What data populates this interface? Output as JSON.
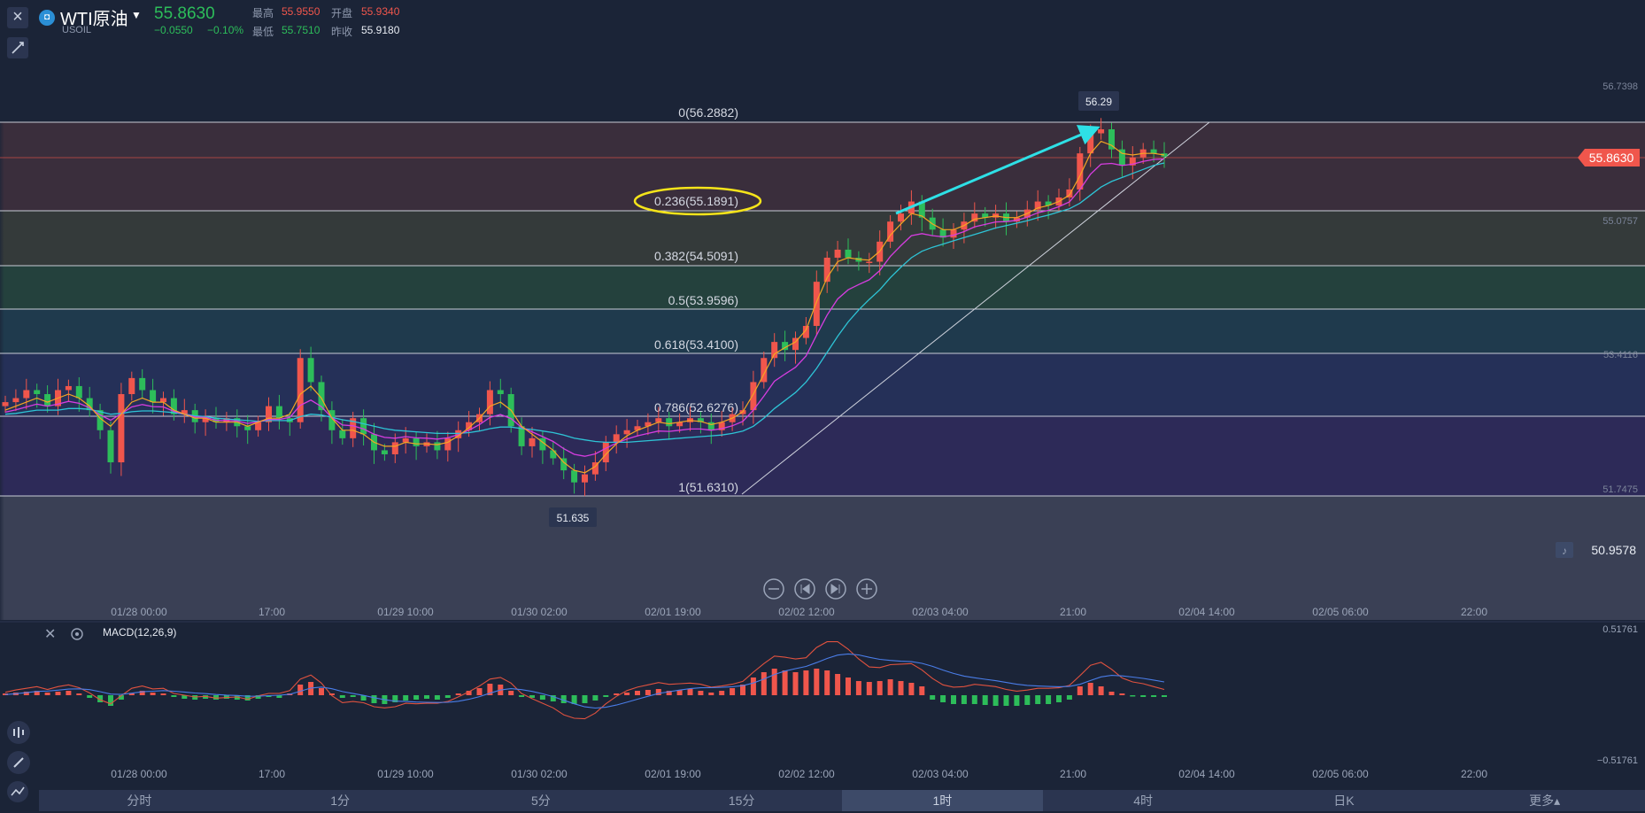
{
  "header": {
    "symbol_name": "WTI原油",
    "symbol_code": "USOIL",
    "price": "55.8630",
    "change": "−0.0550",
    "change_pct": "−0.10%",
    "stats": {
      "high_label": "最高",
      "high_value": "55.9550",
      "open_label": "开盘",
      "open_value": "55.9340",
      "low_label": "最低",
      "low_value": "55.7510",
      "prev_label": "昨收",
      "prev_value": "55.9180"
    }
  },
  "price_axis": {
    "ticks": [
      "56.7398",
      "55.0757",
      "53.4116",
      "51.7475"
    ],
    "current_badge": "55.8630",
    "alert_price": "50.9578"
  },
  "fib_labels": [
    "0(56.2882)",
    "0.236(55.1891)",
    "0.382(54.5091)",
    "0.5(53.9596)",
    "0.618(53.4100)",
    "0.786(52.6276)",
    "1(51.6310)"
  ],
  "callouts": {
    "high": "56.29",
    "low": "51.635"
  },
  "x_axis": {
    "labels": [
      "01/28 00:00",
      "17:00",
      "01/29 10:00",
      "01/30 02:00",
      "02/01 19:00",
      "02/02 12:00",
      "02/03 04:00",
      "21:00",
      "02/04 14:00",
      "02/05 06:00",
      "22:00"
    ]
  },
  "macd": {
    "label": "MACD(12,26,9)",
    "top_value": "0.51761",
    "bottom_value": "−0.51761"
  },
  "intervals": [
    "分时",
    "1分",
    "5分",
    "15分",
    "1时",
    "4时",
    "日K",
    "更多▴"
  ],
  "active_interval": "1时",
  "colors": {
    "up": "#f0564c",
    "down": "#2dbd5a",
    "ma_fast": "#f5a623",
    "ma_mid": "#d63de0",
    "ma_slow": "#2ec4d6",
    "annotation": "#2ee0e6",
    "highlight": "#f5e41a"
  },
  "chart_data": {
    "type": "candlestick",
    "fib_levels": [
      {
        "ratio": 0,
        "price": 56.2882
      },
      {
        "ratio": 0.236,
        "price": 55.1891
      },
      {
        "ratio": 0.382,
        "price": 54.5091
      },
      {
        "ratio": 0.5,
        "price": 53.9596
      },
      {
        "ratio": 0.618,
        "price": 53.41
      },
      {
        "ratio": 0.786,
        "price": 52.6276
      },
      {
        "ratio": 1,
        "price": 51.631
      }
    ],
    "high": 56.29,
    "low": 51.635,
    "closes": [
      52.8,
      52.85,
      52.95,
      52.9,
      52.75,
      52.95,
      53.0,
      52.85,
      52.7,
      52.45,
      52.05,
      52.9,
      53.1,
      52.95,
      52.8,
      52.85,
      52.65,
      52.7,
      52.55,
      52.6,
      52.55,
      52.6,
      52.5,
      52.45,
      52.55,
      52.75,
      52.6,
      52.55,
      53.35,
      53.05,
      52.7,
      52.45,
      52.35,
      52.6,
      52.4,
      52.2,
      52.15,
      52.3,
      52.35,
      52.25,
      52.3,
      52.2,
      52.35,
      52.45,
      52.55,
      52.65,
      52.95,
      52.9,
      52.5,
      52.25,
      52.35,
      52.2,
      52.1,
      51.95,
      51.8,
      51.9,
      52.05,
      52.3,
      52.4,
      52.45,
      52.5,
      52.55,
      52.6,
      52.5,
      52.55,
      52.6,
      52.55,
      52.45,
      52.55,
      52.65,
      52.7,
      53.05,
      53.35,
      53.55,
      53.45,
      53.6,
      53.75,
      54.3,
      54.6,
      54.7,
      54.6,
      54.55,
      54.55,
      54.8,
      55.05,
      55.15,
      55.3,
      55.1,
      54.95,
      54.85,
      54.95,
      55.05,
      55.15,
      55.1,
      55.15,
      55.05,
      55.1,
      55.2,
      55.3,
      55.25,
      55.35,
      55.45,
      55.9,
      56.15,
      56.2,
      55.95,
      55.75,
      55.85,
      55.95,
      55.9,
      55.86
    ],
    "ma_fast": [
      52.7,
      52.75,
      52.8,
      52.85,
      52.8,
      52.85,
      52.9,
      52.85,
      52.75,
      52.6,
      52.5,
      52.65,
      52.8,
      52.85,
      52.8,
      52.8,
      52.7,
      52.65,
      52.6,
      52.6,
      52.55,
      52.55,
      52.55,
      52.5,
      52.55,
      52.6,
      52.6,
      52.65,
      52.9,
      53.0,
      52.85,
      52.6,
      52.45,
      52.45,
      52.4,
      52.3,
      52.25,
      52.25,
      52.3,
      52.28,
      52.28,
      52.27,
      52.3,
      52.38,
      52.48,
      52.6,
      52.75,
      52.8,
      52.7,
      52.5,
      52.4,
      52.3,
      52.2,
      52.05,
      51.95,
      51.92,
      52.0,
      52.15,
      52.28,
      52.38,
      52.45,
      52.5,
      52.55,
      52.53,
      52.55,
      52.57,
      52.56,
      52.52,
      52.55,
      52.6,
      52.68,
      52.9,
      53.15,
      53.4,
      53.48,
      53.55,
      53.7,
      54.05,
      54.35,
      54.55,
      54.6,
      54.58,
      54.57,
      54.68,
      54.88,
      55.02,
      55.15,
      55.12,
      55.02,
      54.95,
      54.95,
      55.0,
      55.08,
      55.1,
      55.12,
      55.1,
      55.1,
      55.15,
      55.22,
      55.25,
      55.3,
      55.38,
      55.62,
      55.9,
      56.05,
      56.0,
      55.9,
      55.88,
      55.9,
      55.9,
      55.88
    ],
    "ma_slow": [
      52.65,
      52.66,
      52.68,
      52.7,
      52.7,
      52.7,
      52.72,
      52.72,
      52.71,
      52.68,
      52.65,
      52.66,
      52.68,
      52.69,
      52.69,
      52.68,
      52.67,
      52.65,
      52.63,
      52.62,
      52.6,
      52.59,
      52.58,
      52.57,
      52.56,
      52.57,
      52.57,
      52.57,
      52.62,
      52.65,
      52.64,
      52.61,
      52.58,
      52.56,
      52.53,
      52.5,
      52.47,
      52.45,
      52.44,
      52.43,
      52.42,
      52.41,
      52.41,
      52.41,
      52.42,
      52.44,
      52.47,
      52.49,
      52.49,
      52.47,
      52.46,
      52.44,
      52.42,
      52.39,
      52.35,
      52.33,
      52.31,
      52.3,
      52.3,
      52.3,
      52.31,
      52.32,
      52.33,
      52.34,
      52.35,
      52.36,
      52.37,
      52.38,
      52.39,
      52.41,
      52.44,
      52.5,
      52.6,
      52.72,
      52.82,
      52.92,
      53.05,
      53.22,
      53.42,
      53.62,
      53.8,
      53.95,
      54.08,
      54.2,
      54.35,
      54.48,
      54.6,
      54.68,
      54.73,
      54.77,
      54.81,
      54.85,
      54.89,
      54.93,
      54.97,
      55.0,
      55.03,
      55.06,
      55.1,
      55.13,
      55.17,
      55.21,
      55.28,
      55.38,
      55.48,
      55.55,
      55.6,
      55.65,
      55.7,
      55.75,
      55.78
    ],
    "macd_histogram": [
      0.02,
      0.03,
      0.04,
      0.05,
      0.03,
      0.04,
      0.05,
      0.02,
      -0.03,
      -0.08,
      -0.12,
      -0.05,
      0.02,
      0.05,
      0.03,
      0.02,
      -0.02,
      -0.04,
      -0.05,
      -0.04,
      -0.05,
      -0.04,
      -0.05,
      -0.06,
      -0.04,
      -0.02,
      -0.03,
      0.02,
      0.12,
      0.15,
      0.08,
      0.02,
      -0.03,
      -0.02,
      -0.06,
      -0.09,
      -0.1,
      -0.08,
      -0.06,
      -0.05,
      -0.04,
      -0.05,
      -0.03,
      0.02,
      0.05,
      0.08,
      0.13,
      0.12,
      0.05,
      -0.02,
      -0.03,
      -0.05,
      -0.07,
      -0.09,
      -0.1,
      -0.09,
      -0.06,
      -0.02,
      0.02,
      0.03,
      0.05,
      0.06,
      0.07,
      0.05,
      0.06,
      0.07,
      0.05,
      0.03,
      0.05,
      0.08,
      0.12,
      0.2,
      0.26,
      0.3,
      0.28,
      0.26,
      0.28,
      0.3,
      0.28,
      0.24,
      0.2,
      0.16,
      0.15,
      0.16,
      0.18,
      0.16,
      0.14,
      0.1,
      -0.05,
      -0.08,
      -0.1,
      -0.1,
      -0.1,
      -0.11,
      -0.12,
      -0.12,
      -0.12,
      -0.11,
      -0.1,
      -0.1,
      -0.08,
      -0.05,
      0.1,
      0.14,
      0.1,
      0.04,
      0.02,
      -0.01,
      -0.02,
      -0.02,
      -0.02
    ]
  }
}
